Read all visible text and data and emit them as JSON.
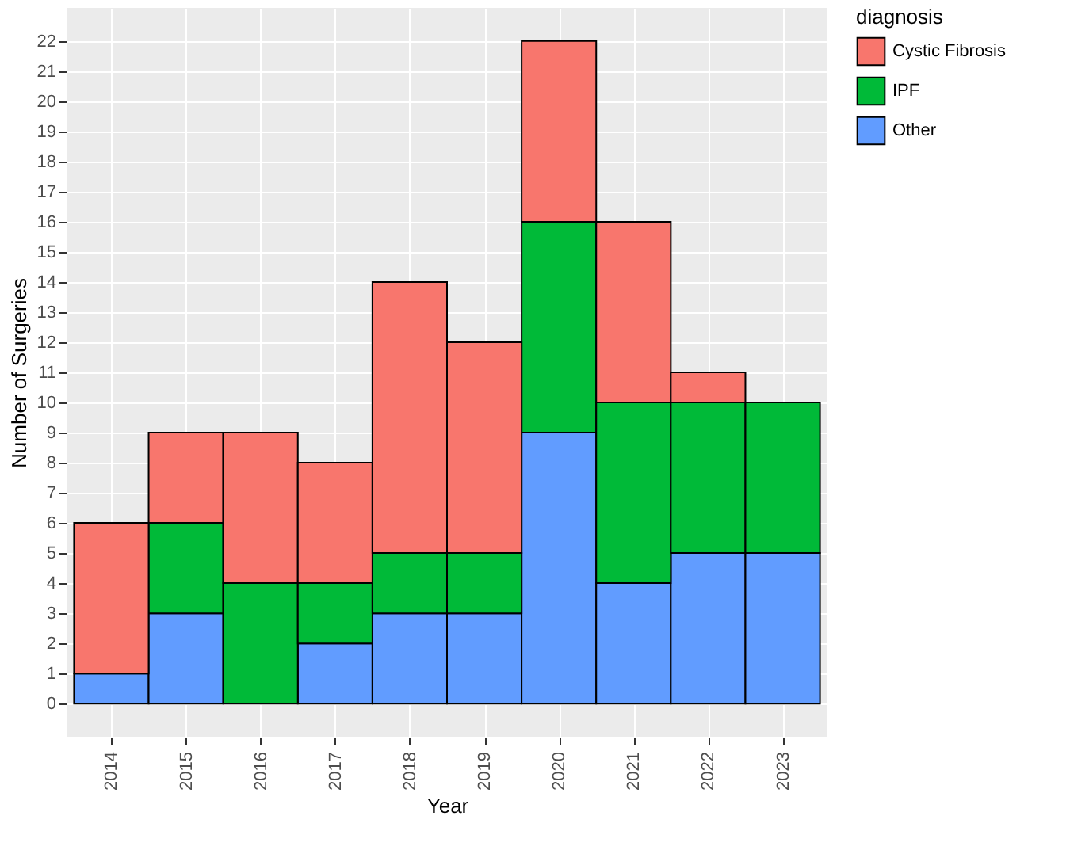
{
  "chart_data": {
    "type": "bar",
    "stacked": true,
    "xlabel": "Year",
    "ylabel": "Number of Surgeries",
    "legend_title": "diagnosis",
    "legend": "right",
    "grid": true,
    "categories": [
      "2014",
      "2015",
      "2016",
      "2017",
      "2018",
      "2019",
      "2020",
      "2021",
      "2022",
      "2023"
    ],
    "series": [
      {
        "name": "Other",
        "color": "#619cff",
        "values": [
          1,
          3,
          0,
          2,
          3,
          3,
          9,
          4,
          5,
          5
        ]
      },
      {
        "name": "IPF",
        "color": "#00ba38",
        "values": [
          0,
          3,
          4,
          2,
          2,
          2,
          7,
          6,
          5,
          5
        ]
      },
      {
        "name": "Cystic Fibrosis",
        "color": "#f8766d",
        "values": [
          5,
          3,
          5,
          4,
          9,
          7,
          6,
          6,
          1,
          0
        ]
      }
    ],
    "ylim": [
      -1.1,
      23.1
    ],
    "yticks": [
      0,
      1,
      2,
      3,
      4,
      5,
      6,
      7,
      8,
      9,
      10,
      11,
      12,
      13,
      14,
      15,
      16,
      17,
      18,
      19,
      20,
      21,
      22
    ]
  }
}
